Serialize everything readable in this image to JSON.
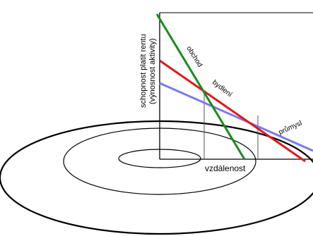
{
  "axis": {
    "y_label_line1": "schopnost platit rentu",
    "y_label_line2": "(výnosnost aktivity)",
    "x_label": "vzdálenost"
  },
  "lines": {
    "obchod": {
      "label": "obchod",
      "color": "#1a8c1a"
    },
    "bydleni": {
      "label": "bydlení",
      "color": "#e01818"
    },
    "prumysl": {
      "label": "průmysl",
      "color": "#7a7aee"
    }
  },
  "colors": {
    "rings": "#000000",
    "axis": "#000000",
    "guides": "#555555"
  }
}
